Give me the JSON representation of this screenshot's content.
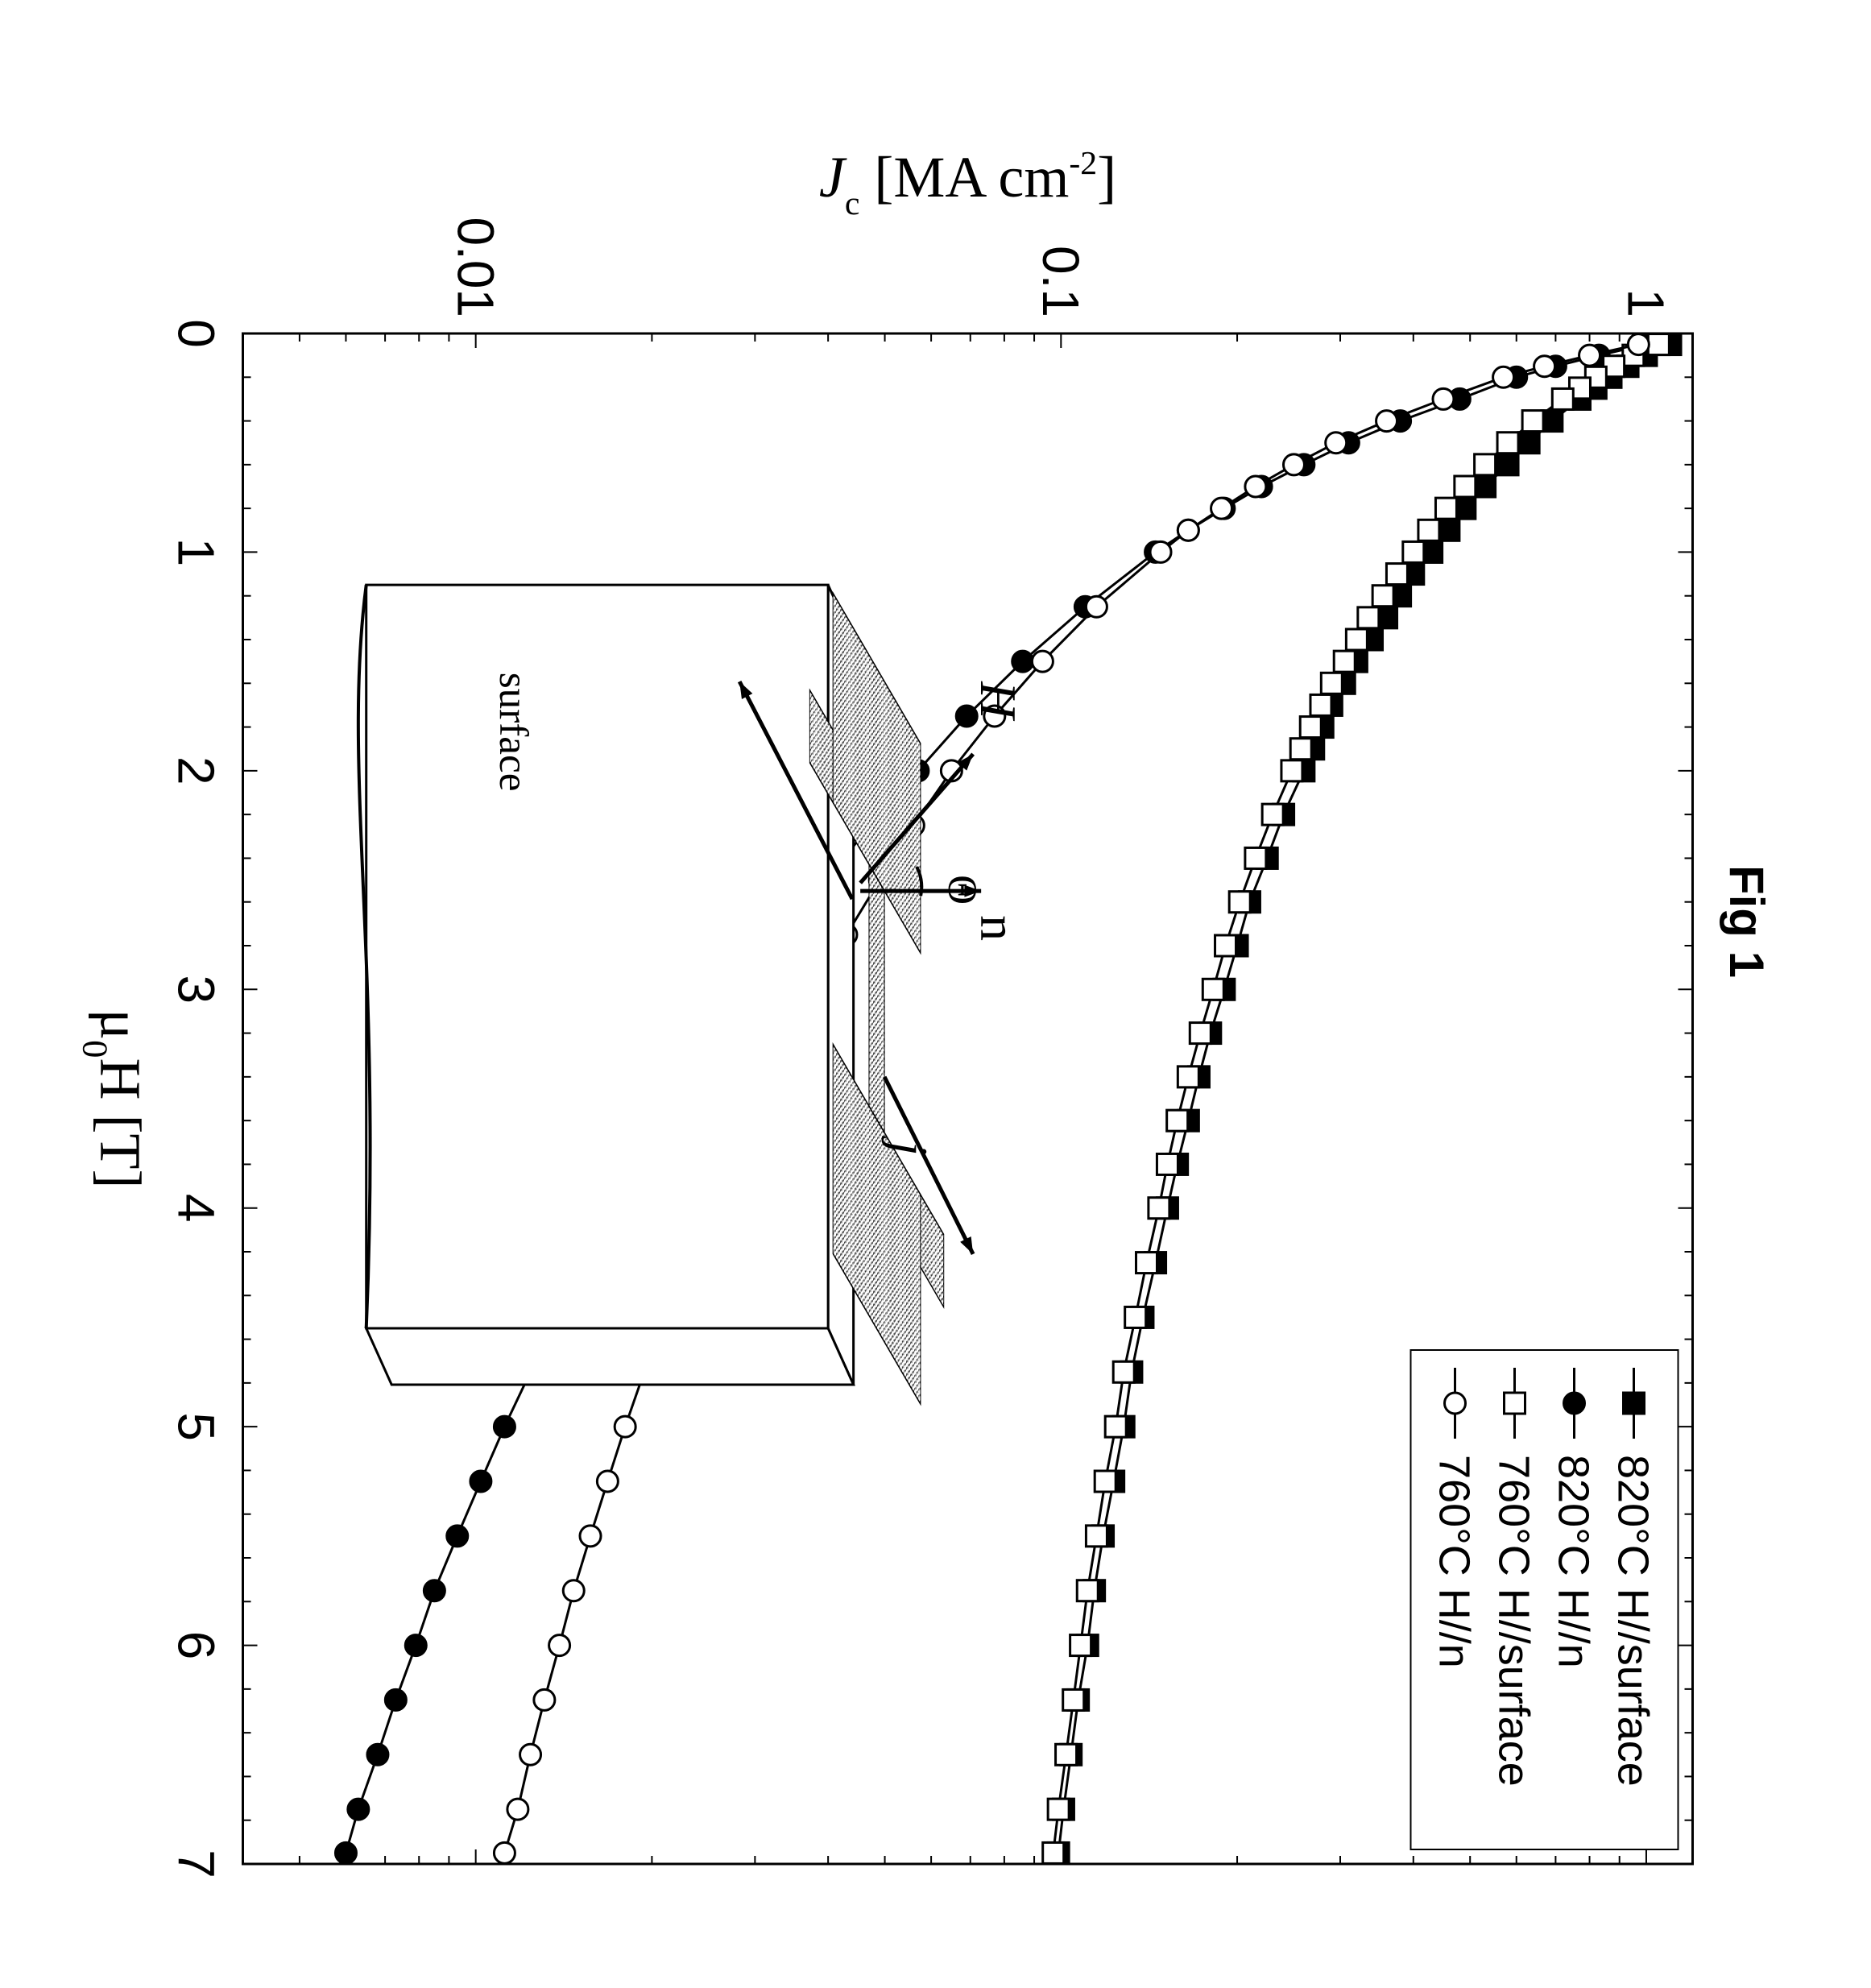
{
  "figure": {
    "title": "Fig 1",
    "title_fontsize": 60,
    "title_fontweight": "bold",
    "rotation_deg": 90,
    "background_color": "#ffffff",
    "axis_color": "#000000",
    "tick_length": 18,
    "minor_tick_length": 10,
    "frame_linewidth": 3,
    "chart": {
      "type": "line-scatter-logy",
      "xaxis": {
        "label": "μ₀H [T]",
        "label_fontsize": 72,
        "lim": [
          0,
          7
        ],
        "ticks": [
          0,
          1,
          2,
          3,
          4,
          5,
          6,
          7
        ],
        "tick_fontsize": 64
      },
      "yaxis": {
        "label": "J_c [MA cm⁻²]",
        "label_fontsize": 72,
        "scale": "log",
        "lim": [
          0.004,
          1.2
        ],
        "major_ticks": [
          0.01,
          0.1,
          1
        ],
        "tick_labels": [
          "0.01",
          "0.1",
          "1"
        ],
        "tick_fontsize": 64
      },
      "series": [
        {
          "id": "820surf",
          "label": "820°C H//surface",
          "marker": "filled-square",
          "marker_size": 26,
          "marker_fill": "#000000",
          "marker_stroke": "#000000",
          "line_color": "#000000",
          "line_width": 3,
          "data": [
            [
              0.05,
              1.1
            ],
            [
              0.1,
              1.0
            ],
            [
              0.15,
              0.93
            ],
            [
              0.2,
              0.87
            ],
            [
              0.25,
              0.82
            ],
            [
              0.3,
              0.77
            ],
            [
              0.4,
              0.69
            ],
            [
              0.5,
              0.63
            ],
            [
              0.6,
              0.58
            ],
            [
              0.7,
              0.53
            ],
            [
              0.8,
              0.49
            ],
            [
              0.9,
              0.46
            ],
            [
              1.0,
              0.43
            ],
            [
              1.1,
              0.4
            ],
            [
              1.2,
              0.38
            ],
            [
              1.3,
              0.36
            ],
            [
              1.4,
              0.34
            ],
            [
              1.5,
              0.32
            ],
            [
              1.6,
              0.305
            ],
            [
              1.7,
              0.29
            ],
            [
              1.8,
              0.28
            ],
            [
              1.9,
              0.27
            ],
            [
              2.0,
              0.26
            ],
            [
              2.2,
              0.24
            ],
            [
              2.4,
              0.225
            ],
            [
              2.6,
              0.21
            ],
            [
              2.8,
              0.2
            ],
            [
              3.0,
              0.19
            ],
            [
              3.2,
              0.18
            ],
            [
              3.4,
              0.172
            ],
            [
              3.6,
              0.165
            ],
            [
              3.8,
              0.158
            ],
            [
              4.0,
              0.152
            ],
            [
              4.25,
              0.145
            ],
            [
              4.5,
              0.138
            ],
            [
              4.75,
              0.132
            ],
            [
              5.0,
              0.128
            ],
            [
              5.25,
              0.123
            ],
            [
              5.5,
              0.118
            ],
            [
              5.75,
              0.114
            ],
            [
              6.0,
              0.111
            ],
            [
              6.25,
              0.107
            ],
            [
              6.5,
              0.104
            ],
            [
              6.75,
              0.101
            ],
            [
              6.95,
              0.099
            ]
          ]
        },
        {
          "id": "820n",
          "label": "820°C H//n",
          "marker": "filled-circle",
          "marker_size": 26,
          "marker_fill": "#000000",
          "marker_stroke": "#000000",
          "line_color": "#000000",
          "line_width": 3,
          "data": [
            [
              0.05,
              1.0
            ],
            [
              0.1,
              0.83
            ],
            [
              0.15,
              0.7
            ],
            [
              0.2,
              0.6
            ],
            [
              0.3,
              0.48
            ],
            [
              0.4,
              0.38
            ],
            [
              0.5,
              0.31
            ],
            [
              0.6,
              0.26
            ],
            [
              0.7,
              0.22
            ],
            [
              0.8,
              0.19
            ],
            [
              0.9,
              0.165
            ],
            [
              1.0,
              0.145
            ],
            [
              1.25,
              0.11
            ],
            [
              1.5,
              0.086
            ],
            [
              1.75,
              0.069
            ],
            [
              2.0,
              0.057
            ],
            [
              2.25,
              0.047
            ],
            [
              2.5,
              0.04
            ],
            [
              2.75,
              0.034
            ],
            [
              3.0,
              0.0295
            ],
            [
              3.25,
              0.0255
            ],
            [
              3.5,
              0.0225
            ],
            [
              3.75,
              0.0198
            ],
            [
              4.0,
              0.0175
            ],
            [
              4.25,
              0.0155
            ],
            [
              4.5,
              0.0138
            ],
            [
              4.75,
              0.0124
            ],
            [
              5.0,
              0.0112
            ],
            [
              5.25,
              0.0102
            ],
            [
              5.5,
              0.0093
            ],
            [
              5.75,
              0.0085
            ],
            [
              6.0,
              0.0079
            ],
            [
              6.25,
              0.0073
            ],
            [
              6.5,
              0.0068
            ],
            [
              6.75,
              0.0063
            ],
            [
              6.95,
              0.006
            ]
          ]
        },
        {
          "id": "760surf",
          "label": "760°C H//surface",
          "marker": "open-square",
          "marker_size": 26,
          "marker_fill": "#ffffff",
          "marker_stroke": "#000000",
          "line_color": "#000000",
          "line_width": 3,
          "data": [
            [
              0.05,
              1.05
            ],
            [
              0.1,
              0.95
            ],
            [
              0.15,
              0.88
            ],
            [
              0.2,
              0.82
            ],
            [
              0.25,
              0.77
            ],
            [
              0.3,
              0.72
            ],
            [
              0.4,
              0.64
            ],
            [
              0.5,
              0.58
            ],
            [
              0.6,
              0.53
            ],
            [
              0.7,
              0.49
            ],
            [
              0.8,
              0.455
            ],
            [
              0.9,
              0.425
            ],
            [
              1.0,
              0.4
            ],
            [
              1.1,
              0.375
            ],
            [
              1.2,
              0.355
            ],
            [
              1.3,
              0.335
            ],
            [
              1.4,
              0.32
            ],
            [
              1.5,
              0.305
            ],
            [
              1.6,
              0.29
            ],
            [
              1.7,
              0.278
            ],
            [
              1.8,
              0.267
            ],
            [
              1.9,
              0.257
            ],
            [
              2.0,
              0.248
            ],
            [
              2.2,
              0.23
            ],
            [
              2.4,
              0.215
            ],
            [
              2.6,
              0.202
            ],
            [
              2.8,
              0.191
            ],
            [
              3.0,
              0.182
            ],
            [
              3.2,
              0.173
            ],
            [
              3.4,
              0.165
            ],
            [
              3.6,
              0.158
            ],
            [
              3.8,
              0.152
            ],
            [
              4.0,
              0.147
            ],
            [
              4.25,
              0.14
            ],
            [
              4.5,
              0.134
            ],
            [
              4.75,
              0.128
            ],
            [
              5.0,
              0.124
            ],
            [
              5.25,
              0.119
            ],
            [
              5.5,
              0.115
            ],
            [
              5.75,
              0.111
            ],
            [
              6.0,
              0.108
            ],
            [
              6.25,
              0.105
            ],
            [
              6.5,
              0.102
            ],
            [
              6.75,
              0.099
            ],
            [
              6.95,
              0.097
            ]
          ]
        },
        {
          "id": "760n",
          "label": "760°C H//n",
          "marker": "open-circle",
          "marker_size": 26,
          "marker_fill": "#ffffff",
          "marker_stroke": "#000000",
          "line_color": "#000000",
          "line_width": 3,
          "data": [
            [
              0.05,
              0.97
            ],
            [
              0.1,
              0.8
            ],
            [
              0.15,
              0.67
            ],
            [
              0.2,
              0.57
            ],
            [
              0.3,
              0.45
            ],
            [
              0.4,
              0.36
            ],
            [
              0.5,
              0.295
            ],
            [
              0.6,
              0.25
            ],
            [
              0.7,
              0.215
            ],
            [
              0.8,
              0.188
            ],
            [
              0.9,
              0.165
            ],
            [
              1.0,
              0.148
            ],
            [
              1.25,
              0.115
            ],
            [
              1.5,
              0.093
            ],
            [
              1.75,
              0.077
            ],
            [
              2.0,
              0.065
            ],
            [
              2.25,
              0.056
            ],
            [
              2.5,
              0.049
            ],
            [
              2.75,
              0.043
            ],
            [
              3.0,
              0.038
            ],
            [
              3.25,
              0.034
            ],
            [
              3.5,
              0.0305
            ],
            [
              3.75,
              0.0275
            ],
            [
              4.0,
              0.025
            ],
            [
              4.25,
              0.0228
            ],
            [
              4.5,
              0.021
            ],
            [
              4.75,
              0.0194
            ],
            [
              5.0,
              0.018
            ],
            [
              5.25,
              0.0168
            ],
            [
              5.5,
              0.0157
            ],
            [
              5.75,
              0.0147
            ],
            [
              6.0,
              0.0139
            ],
            [
              6.25,
              0.0131
            ],
            [
              6.5,
              0.0124
            ],
            [
              6.75,
              0.0118
            ],
            [
              6.95,
              0.0112
            ]
          ]
        }
      ],
      "legend": {
        "fontsize": 54,
        "border_color": "#000000",
        "border_width": 2,
        "background": "#ffffff",
        "position": "top-right"
      },
      "inset": {
        "type": "schematic",
        "labels": {
          "H": "H",
          "n": "n",
          "theta": "Θ",
          "surface": "surface",
          "j": "j"
        },
        "label_fontsize": 64,
        "hatch_color": "#2a2a2a",
        "outline_color": "#000000"
      }
    }
  }
}
